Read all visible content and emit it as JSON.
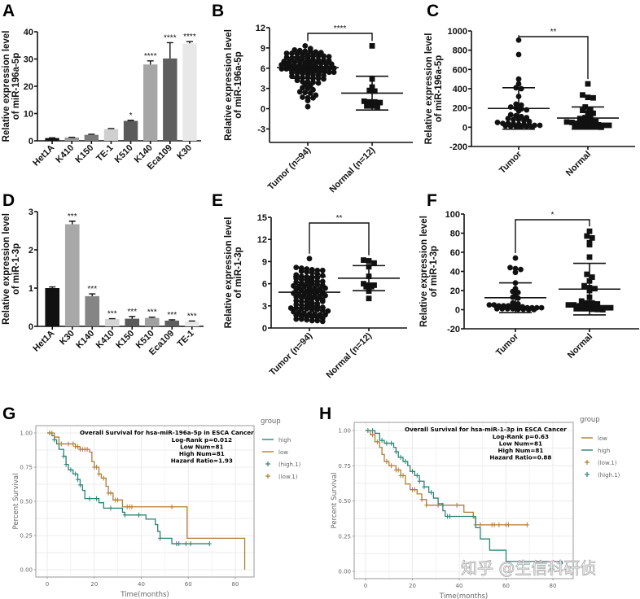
{
  "colors": {
    "teal": "#2b8474",
    "orange": "#b07d35",
    "black": "#111111"
  },
  "watermark": "知乎 @生信科研侦",
  "chart_data": [
    {
      "panel": "A",
      "type": "bar",
      "ylabel": [
        "Relative expression level",
        "of miR-196a-5p"
      ],
      "ylim": [
        0,
        40
      ],
      "yticks": [
        0,
        10,
        20,
        30,
        40
      ],
      "categories": [
        "Het1A",
        "K410",
        "K150",
        "TE-1",
        "K510",
        "K140",
        "Eca109",
        "K30"
      ],
      "values": [
        1.0,
        1.2,
        2.2,
        4.3,
        7.3,
        28.0,
        30.2,
        35.7
      ],
      "errors": [
        0.1,
        0.1,
        0.2,
        0.2,
        0.2,
        1.3,
        5.8,
        0.7
      ],
      "significance": [
        "",
        "",
        "",
        "",
        "*",
        "****",
        "****",
        "****"
      ],
      "bar_colors": [
        "#111111",
        "#9a9a9a",
        "#7a7a7a",
        "#cfcfcf",
        "#5a5a5a",
        "#a6a6a6",
        "#5e5e5e",
        "#e8e8e8"
      ]
    },
    {
      "panel": "B",
      "type": "scatter",
      "ylabel": [
        "Relative expression level",
        "of miR-196a-5p"
      ],
      "ylim": [
        -5,
        12
      ],
      "yticks": [
        -3,
        0,
        3,
        6,
        9,
        12
      ],
      "groups": [
        {
          "name": "Tumor (n=94)",
          "marker": "circle",
          "mean": 6.1,
          "sd": 1.6,
          "values": [
            9.3,
            8.9,
            8.7,
            8.6,
            8.5,
            8.5,
            8.4,
            8.3,
            8.2,
            8.2,
            8.1,
            8.0,
            7.9,
            7.9,
            7.8,
            7.8,
            7.7,
            7.6,
            7.5,
            7.5,
            7.4,
            7.4,
            7.3,
            7.2,
            7.2,
            7.1,
            7.0,
            7.0,
            6.9,
            6.9,
            6.8,
            6.8,
            6.7,
            6.7,
            6.6,
            6.6,
            6.5,
            6.5,
            6.4,
            6.4,
            6.3,
            6.3,
            6.2,
            6.2,
            6.1,
            6.1,
            6.0,
            6.0,
            6.0,
            5.9,
            5.9,
            5.8,
            5.8,
            5.7,
            5.7,
            5.6,
            5.6,
            5.5,
            5.5,
            5.4,
            5.4,
            5.3,
            5.3,
            5.2,
            5.1,
            5.0,
            5.0,
            4.9,
            4.8,
            4.7,
            4.6,
            4.6,
            4.5,
            4.5,
            4.4,
            4.2,
            4.0,
            4.0,
            3.9,
            3.8,
            3.6,
            3.4,
            3.1,
            3.0,
            2.8,
            2.5,
            2.4,
            2.3,
            2.0,
            1.7,
            1.6,
            1.6,
            1.2,
            0.3
          ]
        },
        {
          "name": "Normal (n=12)",
          "marker": "square",
          "mean": 2.3,
          "sd": 2.5,
          "values": [
            9.3,
            4.4,
            3.2,
            2.7,
            2.6,
            1.1,
            1.0,
            1.0,
            0.9,
            0.4,
            0.4,
            0.3
          ]
        }
      ],
      "significance": "****"
    },
    {
      "panel": "C",
      "type": "scatter",
      "ylabel": [
        "Relative expression level",
        "of miR-196a-5p"
      ],
      "ylim": [
        -200,
        1000
      ],
      "yticks": [
        -200,
        0,
        200,
        400,
        600,
        800,
        1000
      ],
      "groups": [
        {
          "name": "Tumor",
          "marker": "circle",
          "mean": 195,
          "sd": 215,
          "values": [
            905,
            755,
            500,
            450,
            410,
            400,
            320,
            240,
            230,
            210,
            200,
            190,
            180,
            170,
            130,
            120,
            110,
            100,
            90,
            80,
            80,
            70,
            60,
            50,
            40,
            40,
            35,
            30,
            30,
            25,
            20,
            20,
            15,
            10,
            10,
            5,
            5,
            0
          ]
        },
        {
          "name": "Normal",
          "marker": "square",
          "mean": 95,
          "sd": 115,
          "values": [
            450,
            335,
            310,
            305,
            210,
            180,
            175,
            150,
            145,
            100,
            100,
            90,
            80,
            70,
            60,
            55,
            50,
            40,
            40,
            35,
            30,
            25,
            20,
            20,
            15,
            10,
            10,
            5,
            5,
            0
          ]
        }
      ],
      "significance": "**"
    },
    {
      "panel": "D",
      "type": "bar",
      "ylabel": [
        "Relative expression level",
        "of miR-1-3p"
      ],
      "ylim": [
        0,
        3
      ],
      "yticks": [
        0,
        1,
        2,
        3
      ],
      "categories": [
        "Het1A",
        "K30",
        "K140",
        "K410",
        "K150",
        "K510",
        "Eca109",
        "TE-1"
      ],
      "values": [
        1.0,
        2.67,
        0.79,
        0.19,
        0.2,
        0.22,
        0.15,
        0.13
      ],
      "errors": [
        0.03,
        0.08,
        0.06,
        0.01,
        0.06,
        0.02,
        0.02,
        0.01
      ],
      "significance": [
        "",
        "***",
        "***",
        "***",
        "***",
        "***",
        "***",
        "***"
      ],
      "bar_colors": [
        "#111111",
        "#a8a8a8",
        "#858585",
        "#d4d4d4",
        "#5a5a5a",
        "#a0a0a0",
        "#5e5e5e",
        "#e8e8e8"
      ]
    },
    {
      "panel": "E",
      "type": "scatter",
      "ylabel": [
        "Relative expression level",
        "of miR-1-3p"
      ],
      "ylim": [
        0,
        15
      ],
      "yticks": [
        0,
        3,
        6,
        9,
        12,
        15
      ],
      "groups": [
        {
          "name": "Tumor (n=94)",
          "marker": "circle",
          "mean": 4.85,
          "sd": 2.1,
          "values": [
            9.4,
            8.2,
            8.1,
            8.0,
            7.9,
            7.8,
            7.8,
            7.7,
            7.6,
            7.5,
            7.3,
            7.2,
            7.0,
            6.9,
            6.9,
            6.8,
            6.7,
            6.6,
            6.5,
            6.4,
            6.3,
            6.2,
            6.1,
            6.0,
            6.0,
            5.9,
            5.8,
            5.7,
            5.6,
            5.6,
            5.5,
            5.4,
            5.3,
            5.2,
            5.1,
            5.0,
            5.0,
            4.9,
            4.8,
            4.7,
            4.6,
            4.5,
            4.5,
            4.4,
            4.3,
            4.2,
            4.1,
            4.0,
            4.0,
            3.9,
            3.8,
            3.7,
            3.6,
            3.5,
            3.4,
            3.3,
            3.2,
            3.1,
            3.0,
            3.0,
            2.9,
            2.8,
            2.7,
            2.7,
            2.6,
            2.6,
            2.5,
            2.5,
            2.4,
            2.3,
            2.2,
            2.1,
            2.0,
            1.9,
            1.9,
            1.8,
            1.8,
            1.7,
            1.6,
            1.5,
            1.5,
            1.4,
            1.3,
            1.2,
            1.2,
            1.1,
            1.0,
            1.0,
            0.9,
            3.6,
            4.4,
            5.4,
            6.3,
            7.1
          ]
        },
        {
          "name": "Normal (n=12)",
          "marker": "square",
          "mean": 6.75,
          "sd": 1.7,
          "values": [
            9.2,
            9.1,
            8.8,
            8.3,
            7.0,
            6.0,
            5.8,
            5.8,
            5.6,
            5.6,
            5.0,
            4.0
          ]
        }
      ],
      "significance": "**"
    },
    {
      "panel": "F",
      "type": "scatter",
      "ylabel": [
        "Relative expression level",
        "of miR-1-3p"
      ],
      "ylim": [
        -20,
        100
      ],
      "yticks": [
        -20,
        0,
        20,
        40,
        60,
        80,
        100
      ],
      "groups": [
        {
          "name": "Tumor",
          "marker": "circle",
          "mean": 12.5,
          "sd": 15.5,
          "values": [
            54,
            44,
            43,
            42,
            39,
            28,
            22,
            19,
            18,
            15,
            13,
            12,
            7,
            6,
            5,
            5,
            4,
            4,
            4,
            3,
            3,
            3,
            2,
            2,
            2,
            2,
            1,
            1,
            1,
            1,
            0.5,
            0.5,
            0.2,
            0
          ]
        },
        {
          "name": "Normal",
          "marker": "square",
          "mean": 21.5,
          "sd": 27,
          "values": [
            82,
            77,
            75,
            70,
            68,
            55,
            37,
            34,
            30,
            25,
            23,
            22,
            20,
            13,
            9,
            7,
            7,
            6,
            5,
            5,
            4,
            4,
            3,
            3,
            2,
            2,
            2,
            1,
            1,
            1,
            0.5,
            0.2,
            0
          ]
        }
      ],
      "significance": "*"
    },
    {
      "panel": "G",
      "type": "line",
      "title": "Overall Survival for hsa-miR-196a-5p in ESCA Cancer",
      "annotations": [
        "Log-Rank p=0.012",
        "Low Num=81",
        "High Num=81",
        "Hazard Ratio=1.93"
      ],
      "xlabel": "Time(months)",
      "ylabel": "Percent Survival",
      "xlim": [
        -3,
        88
      ],
      "ylim": [
        0,
        1
      ],
      "xticks": [
        0,
        20,
        40,
        60,
        80
      ],
      "yticks": [
        "0.00",
        "0.25",
        "0.50",
        "0.75",
        "1.00"
      ],
      "grid": true,
      "legend_title": "group",
      "legend_position": "right",
      "legend": [
        "high",
        "low",
        "(high.1)",
        "(low.1)"
      ],
      "series": [
        {
          "name": "high",
          "color": "#2b8474",
          "steps": [
            [
              0,
              1
            ],
            [
              2,
              0.98
            ],
            [
              3,
              0.95
            ],
            [
              4,
              0.92
            ],
            [
              5,
              0.88
            ],
            [
              7,
              0.83
            ],
            [
              8,
              0.77
            ],
            [
              9,
              0.73
            ],
            [
              11,
              0.7
            ],
            [
              13,
              0.66
            ],
            [
              14,
              0.62
            ],
            [
              15,
              0.58
            ],
            [
              16,
              0.52
            ],
            [
              22,
              0.49
            ],
            [
              24,
              0.45
            ],
            [
              32,
              0.42
            ],
            [
              33,
              0.4
            ],
            [
              42,
              0.37
            ],
            [
              46,
              0.33
            ],
            [
              47,
              0.28
            ],
            [
              48,
              0.23
            ],
            [
              53,
              0.19
            ],
            [
              69,
              0.19
            ]
          ],
          "censored": [
            1,
            3,
            7,
            8,
            10,
            12,
            13,
            14,
            18,
            21,
            27,
            33,
            39,
            48,
            55,
            56,
            59,
            61,
            69
          ]
        },
        {
          "name": "low",
          "color": "#b07d35",
          "steps": [
            [
              0,
              1
            ],
            [
              3,
              0.97
            ],
            [
              5,
              0.92
            ],
            [
              12,
              0.9
            ],
            [
              14,
              0.88
            ],
            [
              18,
              0.86
            ],
            [
              19,
              0.79
            ],
            [
              20,
              0.75
            ],
            [
              22,
              0.7
            ],
            [
              23,
              0.67
            ],
            [
              25,
              0.61
            ],
            [
              26,
              0.56
            ],
            [
              28,
              0.51
            ],
            [
              32,
              0.46
            ],
            [
              59.5,
              0.46
            ],
            [
              59.5,
              0.23
            ],
            [
              84,
              0.23
            ],
            [
              84,
              0
            ]
          ],
          "censored": [
            1,
            2,
            6,
            9,
            11,
            12,
            13,
            14,
            15,
            16,
            17,
            20,
            21,
            22,
            24,
            26,
            27,
            29,
            30,
            34,
            35,
            36,
            53
          ]
        }
      ]
    },
    {
      "panel": "H",
      "type": "line",
      "title": "Overall Survival for hsa-miR-1-3p in ESCA Cancer",
      "annotations": [
        "Log-Rank p=0.63",
        "Low Num=81",
        "High Num=81",
        "Hazard Ratio=0.88"
      ],
      "xlabel": "Time(months)",
      "ylabel": "Percent Survival",
      "xlim": [
        -3,
        88
      ],
      "ylim": [
        0,
        1
      ],
      "xticks": [
        0,
        20,
        40,
        60,
        80
      ],
      "yticks": [
        "0.00",
        "0.25",
        "0.50",
        "0.75",
        "1.00"
      ],
      "grid": true,
      "legend_title": "group",
      "legend_position": "right",
      "legend": [
        "low",
        "high",
        "(low.1)",
        "(high.1)"
      ],
      "series": [
        {
          "name": "low",
          "color": "#b07d35",
          "steps": [
            [
              0,
              1
            ],
            [
              2,
              0.97
            ],
            [
              4,
              0.92
            ],
            [
              6,
              0.88
            ],
            [
              7,
              0.83
            ],
            [
              8,
              0.78
            ],
            [
              10,
              0.75
            ],
            [
              13,
              0.72
            ],
            [
              15,
              0.68
            ],
            [
              17,
              0.62
            ],
            [
              19,
              0.58
            ],
            [
              22,
              0.55
            ],
            [
              24,
              0.51
            ],
            [
              26,
              0.47
            ],
            [
              42,
              0.47
            ],
            [
              42,
              0.42
            ],
            [
              46,
              0.38
            ],
            [
              47,
              0.33
            ],
            [
              69,
              0.33
            ]
          ],
          "censored": [
            3,
            5,
            9,
            11,
            13,
            14,
            15,
            16,
            20,
            21,
            24,
            26,
            31,
            33,
            39,
            47,
            49,
            54,
            55,
            57,
            60,
            61,
            69
          ]
        },
        {
          "name": "high",
          "color": "#2b8474",
          "steps": [
            [
              0,
              1
            ],
            [
              4,
              0.98
            ],
            [
              6,
              0.93
            ],
            [
              8,
              0.91
            ],
            [
              12,
              0.88
            ],
            [
              13,
              0.85
            ],
            [
              14,
              0.81
            ],
            [
              16,
              0.78
            ],
            [
              18,
              0.75
            ],
            [
              19,
              0.71
            ],
            [
              21,
              0.68
            ],
            [
              23,
              0.64
            ],
            [
              25,
              0.6
            ],
            [
              27,
              0.56
            ],
            [
              29,
              0.52
            ],
            [
              31,
              0.48
            ],
            [
              33,
              0.43
            ],
            [
              34,
              0.39
            ],
            [
              46,
              0.39
            ],
            [
              47,
              0.31
            ],
            [
              49,
              0.23
            ],
            [
              53,
              0.15
            ],
            [
              60,
              0.07
            ],
            [
              84,
              0.07
            ],
            [
              84,
              0.05
            ]
          ],
          "censored": [
            1,
            3,
            7,
            9,
            11,
            13,
            15,
            17,
            20,
            22,
            23,
            25,
            28,
            35,
            36
          ]
        }
      ]
    }
  ]
}
